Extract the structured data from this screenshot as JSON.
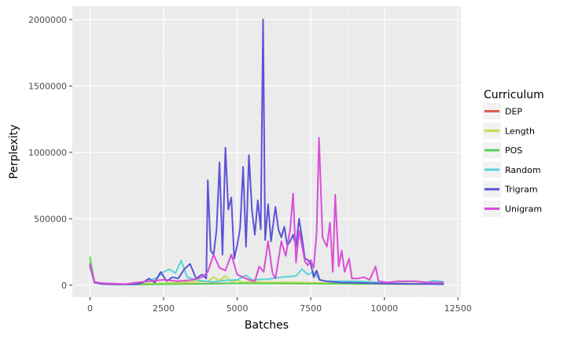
{
  "chart_data": {
    "type": "line",
    "title": "",
    "xlabel": "Batches",
    "ylabel": "Perplexity",
    "xlim": [
      -600,
      12600
    ],
    "ylim": [
      -90000,
      2100000
    ],
    "x_ticks": [
      0,
      2500,
      5000,
      7500,
      10000,
      12500
    ],
    "y_ticks": [
      0,
      500000,
      1000000,
      1500000,
      2000000
    ],
    "x_tick_labels": [
      "0",
      "2500",
      "5000",
      "7500",
      "10000",
      "12500"
    ],
    "y_tick_labels": [
      "0",
      "500000",
      "1000000",
      "1500000",
      "2000000"
    ],
    "grid": true,
    "legend": {
      "title": "Curriculum",
      "placement": "right"
    },
    "series": [
      {
        "name": "DEP",
        "color": "#e05b4b",
        "points": [
          [
            0,
            150000
          ],
          [
            150,
            25000
          ],
          [
            400,
            12000
          ],
          [
            800,
            8000
          ],
          [
            1200,
            6000
          ],
          [
            1600,
            6000
          ],
          [
            2000,
            7000
          ],
          [
            2500,
            8000
          ],
          [
            3000,
            9000
          ],
          [
            3500,
            10000
          ],
          [
            4000,
            12000
          ],
          [
            4500,
            14000
          ],
          [
            5000,
            13000
          ],
          [
            5500,
            15000
          ],
          [
            6000,
            14000
          ],
          [
            6500,
            13000
          ],
          [
            7000,
            12000
          ],
          [
            7500,
            12000
          ],
          [
            8000,
            11000
          ],
          [
            8500,
            11000
          ],
          [
            9000,
            10000
          ],
          [
            9500,
            10000
          ],
          [
            10000,
            10000
          ],
          [
            10500,
            9000
          ],
          [
            11000,
            9000
          ],
          [
            11500,
            9000
          ],
          [
            12000,
            9000
          ]
        ]
      },
      {
        "name": "Length",
        "color": "#c9d94a",
        "points": [
          [
            0,
            170000
          ],
          [
            150,
            25000
          ],
          [
            400,
            12000
          ],
          [
            800,
            8000
          ],
          [
            1200,
            7000
          ],
          [
            1600,
            10000
          ],
          [
            2000,
            12000
          ],
          [
            2500,
            15000
          ],
          [
            3000,
            20000
          ],
          [
            3500,
            25000
          ],
          [
            4000,
            30000
          ],
          [
            4200,
            60000
          ],
          [
            4400,
            35000
          ],
          [
            4600,
            70000
          ],
          [
            4800,
            25000
          ],
          [
            5000,
            35000
          ],
          [
            5200,
            20000
          ],
          [
            5500,
            25000
          ],
          [
            6000,
            20000
          ],
          [
            6500,
            22000
          ],
          [
            7000,
            20000
          ],
          [
            7500,
            18000
          ],
          [
            8000,
            16000
          ],
          [
            8500,
            15000
          ],
          [
            9000,
            15000
          ],
          [
            9500,
            14000
          ],
          [
            10000,
            13000
          ],
          [
            10500,
            12000
          ],
          [
            11000,
            12000
          ],
          [
            11500,
            11000
          ],
          [
            12000,
            11000
          ]
        ]
      },
      {
        "name": "POS",
        "color": "#5bd15b",
        "points": [
          [
            0,
            210000
          ],
          [
            150,
            20000
          ],
          [
            400,
            10000
          ],
          [
            800,
            7000
          ],
          [
            1200,
            5000
          ],
          [
            1600,
            5000
          ],
          [
            2000,
            6000
          ],
          [
            2500,
            7000
          ],
          [
            3000,
            8000
          ],
          [
            3500,
            9000
          ],
          [
            4000,
            10000
          ],
          [
            4500,
            12000
          ],
          [
            5000,
            14000
          ],
          [
            5500,
            13000
          ],
          [
            6000,
            12000
          ],
          [
            6500,
            13000
          ],
          [
            7000,
            12000
          ],
          [
            7500,
            11000
          ],
          [
            8000,
            10000
          ],
          [
            8500,
            10000
          ],
          [
            9000,
            9000
          ],
          [
            9500,
            9000
          ],
          [
            10000,
            9000
          ],
          [
            10500,
            8000
          ],
          [
            11000,
            8000
          ],
          [
            11500,
            8000
          ],
          [
            12000,
            8000
          ]
        ]
      },
      {
        "name": "Random",
        "color": "#5ad3d8",
        "points": [
          [
            0,
            160000
          ],
          [
            150,
            20000
          ],
          [
            400,
            10000
          ],
          [
            800,
            8000
          ],
          [
            1200,
            7000
          ],
          [
            1600,
            15000
          ],
          [
            2000,
            30000
          ],
          [
            2300,
            60000
          ],
          [
            2500,
            100000
          ],
          [
            2700,
            120000
          ],
          [
            2900,
            90000
          ],
          [
            3100,
            185000
          ],
          [
            3300,
            60000
          ],
          [
            3600,
            40000
          ],
          [
            3900,
            30000
          ],
          [
            4200,
            25000
          ],
          [
            4500,
            35000
          ],
          [
            5000,
            40000
          ],
          [
            5300,
            75000
          ],
          [
            5500,
            40000
          ],
          [
            6000,
            45000
          ],
          [
            6500,
            60000
          ],
          [
            7000,
            70000
          ],
          [
            7200,
            120000
          ],
          [
            7400,
            80000
          ],
          [
            7600,
            100000
          ],
          [
            7800,
            40000
          ],
          [
            8000,
            30000
          ],
          [
            8500,
            30000
          ],
          [
            9000,
            30000
          ],
          [
            9500,
            25000
          ],
          [
            10000,
            20000
          ],
          [
            10500,
            25000
          ],
          [
            11000,
            30000
          ],
          [
            11400,
            20000
          ],
          [
            11700,
            35000
          ],
          [
            12000,
            25000
          ]
        ]
      },
      {
        "name": "Trigram",
        "color": "#5c53d6",
        "points": [
          [
            0,
            140000
          ],
          [
            150,
            20000
          ],
          [
            400,
            8000
          ],
          [
            800,
            6000
          ],
          [
            1200,
            6000
          ],
          [
            1600,
            8000
          ],
          [
            1800,
            20000
          ],
          [
            2000,
            50000
          ],
          [
            2200,
            20000
          ],
          [
            2400,
            100000
          ],
          [
            2600,
            30000
          ],
          [
            2800,
            60000
          ],
          [
            3000,
            50000
          ],
          [
            3200,
            120000
          ],
          [
            3400,
            160000
          ],
          [
            3600,
            50000
          ],
          [
            3800,
            80000
          ],
          [
            3950,
            50000
          ],
          [
            4000,
            790000
          ],
          [
            4100,
            260000
          ],
          [
            4200,
            230000
          ],
          [
            4300,
            420000
          ],
          [
            4400,
            925000
          ],
          [
            4500,
            230000
          ],
          [
            4600,
            1035000
          ],
          [
            4700,
            570000
          ],
          [
            4800,
            660000
          ],
          [
            4900,
            200000
          ],
          [
            5000,
            300000
          ],
          [
            5100,
            430000
          ],
          [
            5200,
            890000
          ],
          [
            5300,
            290000
          ],
          [
            5400,
            980000
          ],
          [
            5500,
            570000
          ],
          [
            5600,
            380000
          ],
          [
            5700,
            640000
          ],
          [
            5800,
            420000
          ],
          [
            5880,
            2000000
          ],
          [
            5950,
            340000
          ],
          [
            6050,
            610000
          ],
          [
            6150,
            330000
          ],
          [
            6300,
            590000
          ],
          [
            6400,
            420000
          ],
          [
            6500,
            360000
          ],
          [
            6600,
            440000
          ],
          [
            6700,
            300000
          ],
          [
            6800,
            330000
          ],
          [
            6900,
            380000
          ],
          [
            7000,
            290000
          ],
          [
            7100,
            500000
          ],
          [
            7200,
            360000
          ],
          [
            7300,
            200000
          ],
          [
            7400,
            190000
          ],
          [
            7500,
            160000
          ],
          [
            7600,
            60000
          ],
          [
            7700,
            110000
          ],
          [
            7800,
            40000
          ],
          [
            8000,
            30000
          ],
          [
            8500,
            20000
          ],
          [
            9000,
            18000
          ],
          [
            9500,
            15000
          ],
          [
            10000,
            12000
          ],
          [
            10500,
            10000
          ],
          [
            11000,
            9000
          ],
          [
            11500,
            8000
          ],
          [
            12000,
            7000
          ]
        ]
      },
      {
        "name": "Unigram",
        "color": "#d94fd8",
        "points": [
          [
            0,
            155000
          ],
          [
            150,
            25000
          ],
          [
            400,
            15000
          ],
          [
            800,
            12000
          ],
          [
            1200,
            8000
          ],
          [
            1600,
            20000
          ],
          [
            2000,
            30000
          ],
          [
            2500,
            40000
          ],
          [
            3000,
            30000
          ],
          [
            3500,
            40000
          ],
          [
            3800,
            60000
          ],
          [
            4000,
            100000
          ],
          [
            4200,
            230000
          ],
          [
            4400,
            130000
          ],
          [
            4600,
            110000
          ],
          [
            4800,
            230000
          ],
          [
            5000,
            80000
          ],
          [
            5200,
            60000
          ],
          [
            5400,
            40000
          ],
          [
            5600,
            30000
          ],
          [
            5750,
            140000
          ],
          [
            5900,
            100000
          ],
          [
            6050,
            330000
          ],
          [
            6200,
            90000
          ],
          [
            6300,
            50000
          ],
          [
            6500,
            330000
          ],
          [
            6650,
            220000
          ],
          [
            6800,
            420000
          ],
          [
            6900,
            690000
          ],
          [
            7000,
            170000
          ],
          [
            7100,
            410000
          ],
          [
            7200,
            300000
          ],
          [
            7300,
            180000
          ],
          [
            7400,
            150000
          ],
          [
            7500,
            190000
          ],
          [
            7600,
            130000
          ],
          [
            7700,
            400000
          ],
          [
            7780,
            1110000
          ],
          [
            7900,
            360000
          ],
          [
            8050,
            290000
          ],
          [
            8150,
            470000
          ],
          [
            8250,
            100000
          ],
          [
            8330,
            680000
          ],
          [
            8450,
            140000
          ],
          [
            8550,
            260000
          ],
          [
            8650,
            100000
          ],
          [
            8800,
            200000
          ],
          [
            8900,
            50000
          ],
          [
            9100,
            50000
          ],
          [
            9300,
            60000
          ],
          [
            9500,
            40000
          ],
          [
            9700,
            140000
          ],
          [
            9800,
            30000
          ],
          [
            10100,
            20000
          ],
          [
            10500,
            30000
          ],
          [
            11000,
            30000
          ],
          [
            11500,
            20000
          ],
          [
            12000,
            20000
          ]
        ]
      }
    ]
  }
}
